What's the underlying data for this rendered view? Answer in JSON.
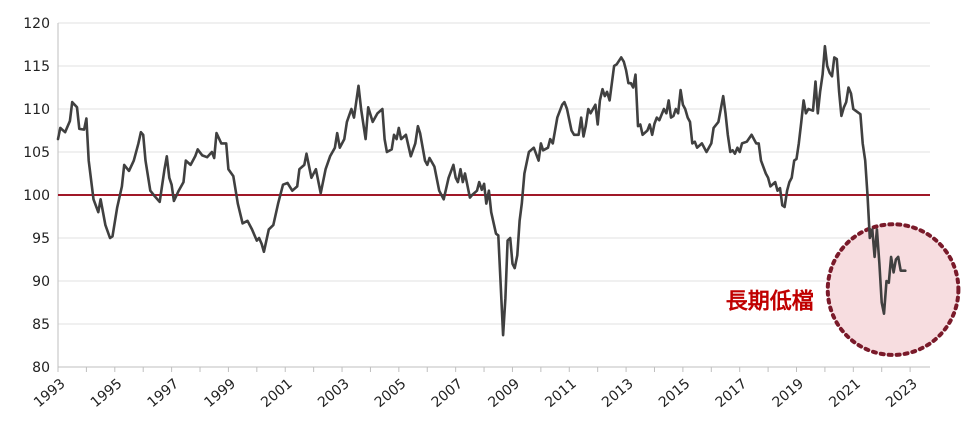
{
  "chart_data": {
    "type": "line",
    "title": "",
    "xlabel": "",
    "ylabel": "",
    "xlim": [
      1993.0,
      2023.7
    ],
    "ylim": [
      80,
      120
    ],
    "yticks": [
      80,
      85,
      90,
      95,
      100,
      105,
      110,
      115,
      120
    ],
    "xticks": [
      "1993",
      "1995",
      "1997",
      "1999",
      "2001",
      "2003",
      "2005",
      "2007",
      "2009",
      "2011",
      "2013",
      "2015",
      "2017",
      "2019",
      "2021",
      "2023"
    ],
    "grid": "horizontal",
    "reference_line": {
      "value": 100,
      "color": "#a01828"
    },
    "line_color": "#404040",
    "annotation": {
      "text": "長期低檔",
      "color": "#c00000",
      "circle_fill": "#f7dde0",
      "circle_stroke": "#7a1a2a",
      "center": [
        2022.4,
        89
      ],
      "radius_years": 2.3
    },
    "series": [
      {
        "values": [
          [
            1993.0,
            106.5
          ],
          [
            1993.08,
            107.8
          ],
          [
            1993.25,
            107.3
          ],
          [
            1993.42,
            108.6
          ],
          [
            1993.5,
            110.8
          ],
          [
            1993.67,
            110.2
          ],
          [
            1993.75,
            107.7
          ],
          [
            1993.92,
            107.6
          ],
          [
            1994.0,
            108.9
          ],
          [
            1994.08,
            104.0
          ],
          [
            1994.25,
            99.5
          ],
          [
            1994.42,
            98.0
          ],
          [
            1994.5,
            99.5
          ],
          [
            1994.67,
            96.5
          ],
          [
            1994.83,
            95.0
          ],
          [
            1994.92,
            95.2
          ],
          [
            1995.08,
            98.5
          ],
          [
            1995.25,
            101.0
          ],
          [
            1995.33,
            103.5
          ],
          [
            1995.5,
            102.8
          ],
          [
            1995.67,
            104.0
          ],
          [
            1995.83,
            106.0
          ],
          [
            1995.92,
            107.3
          ],
          [
            1996.0,
            107.0
          ],
          [
            1996.08,
            104.0
          ],
          [
            1996.25,
            100.5
          ],
          [
            1996.42,
            99.8
          ],
          [
            1996.58,
            99.2
          ],
          [
            1996.75,
            103.0
          ],
          [
            1996.83,
            104.5
          ],
          [
            1996.92,
            102.0
          ],
          [
            1997.0,
            101.2
          ],
          [
            1997.08,
            99.3
          ],
          [
            1997.25,
            100.5
          ],
          [
            1997.42,
            101.5
          ],
          [
            1997.5,
            104.0
          ],
          [
            1997.67,
            103.5
          ],
          [
            1997.83,
            104.5
          ],
          [
            1997.92,
            105.3
          ],
          [
            1998.08,
            104.6
          ],
          [
            1998.25,
            104.4
          ],
          [
            1998.42,
            105.0
          ],
          [
            1998.5,
            104.3
          ],
          [
            1998.58,
            107.2
          ],
          [
            1998.75,
            106.0
          ],
          [
            1998.92,
            106.0
          ],
          [
            1999.0,
            103.0
          ],
          [
            1999.17,
            102.2
          ],
          [
            1999.33,
            99.0
          ],
          [
            1999.5,
            96.7
          ],
          [
            1999.67,
            97.0
          ],
          [
            1999.83,
            96.0
          ],
          [
            2000.0,
            94.7
          ],
          [
            2000.08,
            95.0
          ],
          [
            2000.17,
            94.3
          ],
          [
            2000.25,
            93.4
          ],
          [
            2000.42,
            96.0
          ],
          [
            2000.58,
            96.5
          ],
          [
            2000.75,
            99.0
          ],
          [
            2000.92,
            101.2
          ],
          [
            2001.08,
            101.4
          ],
          [
            2001.25,
            100.5
          ],
          [
            2001.42,
            101.0
          ],
          [
            2001.5,
            103.0
          ],
          [
            2001.67,
            103.5
          ],
          [
            2001.75,
            104.8
          ],
          [
            2001.92,
            102.0
          ],
          [
            2002.08,
            103.0
          ],
          [
            2002.25,
            100.2
          ],
          [
            2002.42,
            103.0
          ],
          [
            2002.58,
            104.5
          ],
          [
            2002.75,
            105.5
          ],
          [
            2002.83,
            107.2
          ],
          [
            2002.92,
            105.5
          ],
          [
            2003.08,
            106.5
          ],
          [
            2003.17,
            108.5
          ],
          [
            2003.33,
            110.0
          ],
          [
            2003.42,
            109.0
          ],
          [
            2003.5,
            110.8
          ],
          [
            2003.58,
            112.7
          ],
          [
            2003.67,
            110.0
          ],
          [
            2003.83,
            106.5
          ],
          [
            2003.92,
            110.2
          ],
          [
            2004.08,
            108.5
          ],
          [
            2004.25,
            109.5
          ],
          [
            2004.42,
            110.0
          ],
          [
            2004.5,
            106.5
          ],
          [
            2004.58,
            105.0
          ],
          [
            2004.75,
            105.3
          ],
          [
            2004.83,
            107.0
          ],
          [
            2004.92,
            106.5
          ],
          [
            2005.0,
            107.8
          ],
          [
            2005.08,
            106.5
          ],
          [
            2005.25,
            107.0
          ],
          [
            2005.42,
            104.5
          ],
          [
            2005.58,
            106.0
          ],
          [
            2005.67,
            108.0
          ],
          [
            2005.75,
            107.2
          ],
          [
            2005.92,
            104.0
          ],
          [
            2006.0,
            103.5
          ],
          [
            2006.08,
            104.3
          ],
          [
            2006.25,
            103.3
          ],
          [
            2006.42,
            100.5
          ],
          [
            2006.58,
            99.5
          ],
          [
            2006.75,
            102.0
          ],
          [
            2006.92,
            103.5
          ],
          [
            2007.0,
            102.0
          ],
          [
            2007.08,
            101.5
          ],
          [
            2007.17,
            103.0
          ],
          [
            2007.25,
            101.5
          ],
          [
            2007.33,
            102.5
          ],
          [
            2007.5,
            99.7
          ],
          [
            2007.58,
            100.0
          ],
          [
            2007.75,
            100.5
          ],
          [
            2007.83,
            101.5
          ],
          [
            2007.92,
            100.6
          ],
          [
            2008.0,
            101.3
          ],
          [
            2008.08,
            99.0
          ],
          [
            2008.17,
            100.5
          ],
          [
            2008.25,
            98.0
          ],
          [
            2008.42,
            95.5
          ],
          [
            2008.5,
            95.3
          ],
          [
            2008.58,
            90.0
          ],
          [
            2008.67,
            83.7
          ],
          [
            2008.75,
            88.0
          ],
          [
            2008.83,
            94.7
          ],
          [
            2008.92,
            95.0
          ],
          [
            2009.0,
            92.0
          ],
          [
            2009.08,
            91.5
          ],
          [
            2009.17,
            93.0
          ],
          [
            2009.25,
            97.0
          ],
          [
            2009.33,
            99.0
          ],
          [
            2009.42,
            102.5
          ],
          [
            2009.58,
            105.0
          ],
          [
            2009.75,
            105.5
          ],
          [
            2009.92,
            104.0
          ],
          [
            2010.0,
            106.0
          ],
          [
            2010.08,
            105.2
          ],
          [
            2010.25,
            105.5
          ],
          [
            2010.33,
            106.5
          ],
          [
            2010.42,
            106.0
          ],
          [
            2010.58,
            109.0
          ],
          [
            2010.75,
            110.5
          ],
          [
            2010.83,
            110.8
          ],
          [
            2010.92,
            110.0
          ],
          [
            2011.08,
            107.5
          ],
          [
            2011.17,
            107.0
          ],
          [
            2011.33,
            107.0
          ],
          [
            2011.42,
            109.0
          ],
          [
            2011.5,
            106.8
          ],
          [
            2011.58,
            108.0
          ],
          [
            2011.67,
            110.0
          ],
          [
            2011.75,
            109.5
          ],
          [
            2011.92,
            110.5
          ],
          [
            2012.0,
            108.2
          ],
          [
            2012.08,
            111.0
          ],
          [
            2012.17,
            112.3
          ],
          [
            2012.25,
            111.5
          ],
          [
            2012.33,
            112.0
          ],
          [
            2012.42,
            111.0
          ],
          [
            2012.58,
            115.0
          ],
          [
            2012.67,
            115.2
          ],
          [
            2012.83,
            116.0
          ],
          [
            2012.92,
            115.5
          ],
          [
            2013.0,
            114.5
          ],
          [
            2013.08,
            113.0
          ],
          [
            2013.17,
            113.0
          ],
          [
            2013.25,
            112.5
          ],
          [
            2013.33,
            114.0
          ],
          [
            2013.42,
            108.0
          ],
          [
            2013.5,
            108.2
          ],
          [
            2013.58,
            107.0
          ],
          [
            2013.75,
            107.5
          ],
          [
            2013.83,
            108.2
          ],
          [
            2013.92,
            107.0
          ],
          [
            2014.0,
            108.3
          ],
          [
            2014.08,
            109.0
          ],
          [
            2014.17,
            108.7
          ],
          [
            2014.33,
            110.0
          ],
          [
            2014.42,
            109.5
          ],
          [
            2014.5,
            111.0
          ],
          [
            2014.58,
            109.0
          ],
          [
            2014.67,
            109.2
          ],
          [
            2014.75,
            110.0
          ],
          [
            2014.83,
            109.5
          ],
          [
            2014.92,
            112.2
          ],
          [
            2015.0,
            110.5
          ],
          [
            2015.08,
            110.0
          ],
          [
            2015.17,
            109.0
          ],
          [
            2015.25,
            108.5
          ],
          [
            2015.33,
            106.0
          ],
          [
            2015.42,
            106.2
          ],
          [
            2015.5,
            105.5
          ],
          [
            2015.67,
            106.0
          ],
          [
            2015.83,
            105.0
          ],
          [
            2016.0,
            106.0
          ],
          [
            2016.08,
            107.8
          ],
          [
            2016.25,
            108.5
          ],
          [
            2016.42,
            111.5
          ],
          [
            2016.5,
            109.5
          ],
          [
            2016.58,
            107.0
          ],
          [
            2016.67,
            105.0
          ],
          [
            2016.75,
            105.2
          ],
          [
            2016.83,
            104.8
          ],
          [
            2016.92,
            105.5
          ],
          [
            2017.0,
            105.0
          ],
          [
            2017.08,
            106.0
          ],
          [
            2017.25,
            106.2
          ],
          [
            2017.42,
            107.0
          ],
          [
            2017.5,
            106.5
          ],
          [
            2017.58,
            106.0
          ],
          [
            2017.67,
            106.0
          ],
          [
            2017.75,
            104.0
          ],
          [
            2017.92,
            102.5
          ],
          [
            2018.0,
            102.0
          ],
          [
            2018.08,
            101.0
          ],
          [
            2018.25,
            101.5
          ],
          [
            2018.33,
            100.5
          ],
          [
            2018.42,
            100.8
          ],
          [
            2018.5,
            98.8
          ],
          [
            2018.58,
            98.6
          ],
          [
            2018.67,
            100.5
          ],
          [
            2018.75,
            101.5
          ],
          [
            2018.83,
            102.0
          ],
          [
            2018.92,
            104.0
          ],
          [
            2019.0,
            104.2
          ],
          [
            2019.08,
            106.0
          ],
          [
            2019.17,
            108.5
          ],
          [
            2019.25,
            111.0
          ],
          [
            2019.33,
            109.5
          ],
          [
            2019.42,
            110.0
          ],
          [
            2019.58,
            109.8
          ],
          [
            2019.67,
            113.2
          ],
          [
            2019.75,
            109.5
          ],
          [
            2019.83,
            112.0
          ],
          [
            2019.92,
            114.0
          ],
          [
            2020.0,
            117.3
          ],
          [
            2020.08,
            115.0
          ],
          [
            2020.17,
            114.2
          ],
          [
            2020.25,
            113.8
          ],
          [
            2020.33,
            116.0
          ],
          [
            2020.42,
            115.8
          ],
          [
            2020.5,
            112.0
          ],
          [
            2020.58,
            109.2
          ],
          [
            2020.67,
            110.2
          ],
          [
            2020.75,
            110.8
          ],
          [
            2020.83,
            112.5
          ],
          [
            2020.92,
            111.8
          ],
          [
            2021.0,
            110.0
          ],
          [
            2021.08,
            109.8
          ],
          [
            2021.25,
            109.4
          ],
          [
            2021.33,
            106.0
          ],
          [
            2021.42,
            104.0
          ],
          [
            2021.5,
            100.0
          ],
          [
            2021.58,
            95.0
          ],
          [
            2021.67,
            96.0
          ],
          [
            2021.75,
            92.8
          ],
          [
            2021.83,
            96.0
          ],
          [
            2021.92,
            92.0
          ],
          [
            2022.0,
            87.5
          ],
          [
            2022.08,
            86.2
          ],
          [
            2022.17,
            90.0
          ],
          [
            2022.25,
            89.8
          ],
          [
            2022.33,
            92.8
          ],
          [
            2022.42,
            91.0
          ],
          [
            2022.5,
            92.5
          ],
          [
            2022.58,
            92.8
          ],
          [
            2022.67,
            91.2
          ],
          [
            2022.83,
            91.2
          ]
        ]
      }
    ]
  }
}
